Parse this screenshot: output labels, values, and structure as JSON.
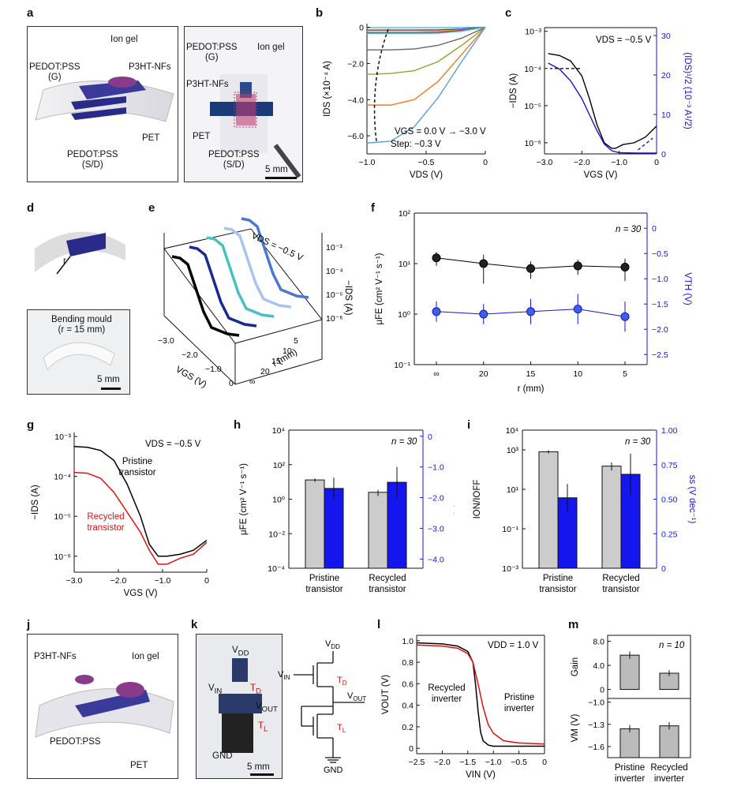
{
  "panels": {
    "a": {
      "letter": "a",
      "labels": {
        "ion_gel": "Ion gel",
        "pedot_g": "PEDOT:PSS\n(G)",
        "p3ht": "P3HT-NFs",
        "pedot_sd": "PEDOT:PSS\n(S/D)",
        "pet": "PET"
      },
      "photo_labels": {
        "pedot_g": "PEDOT:PSS\n(G)",
        "ion_gel": "Ion gel",
        "p3ht": "P3HT-NFs",
        "pet": "PET",
        "pedot_sd": "PEDOT:PSS\n(S/D)",
        "scale": "5 mm"
      }
    },
    "b": {
      "letter": "b"
    },
    "c": {
      "letter": "c"
    },
    "d": {
      "letter": "d",
      "r_label": "r",
      "mould": "Bending mould\n(r = 15 mm)",
      "scale": "5 mm"
    },
    "e": {
      "letter": "e"
    },
    "f": {
      "letter": "f"
    },
    "g": {
      "letter": "g"
    },
    "h": {
      "letter": "h"
    },
    "i": {
      "letter": "i"
    },
    "j": {
      "letter": "j",
      "labels": {
        "p3ht": "P3HT-NFs",
        "ion_gel": "Ion gel",
        "pedot": "PEDOT:PSS",
        "pet": "PET"
      }
    },
    "k": {
      "letter": "k",
      "photo_labels": {
        "vdd": "V",
        "vdd_sub": "DD",
        "vin": "V",
        "vin_sub": "IN",
        "td": "T",
        "td_sub": "D",
        "vout": "V",
        "vout_sub": "OUT",
        "tl": "T",
        "tl_sub": "L",
        "gnd": "GND",
        "scale": "5 mm"
      }
    },
    "l": {
      "letter": "l"
    },
    "m": {
      "letter": "m"
    }
  },
  "chart_data": [
    {
      "id": "b",
      "type": "line",
      "title": "",
      "xlabel": "V_DS (V)",
      "ylabel": "I_DS (×10^-4 A)",
      "xlim": [
        -1.0,
        0
      ],
      "ylim": [
        -7,
        0.2
      ],
      "xticks": [
        "−1.0",
        "−0.5",
        "0"
      ],
      "yticks": [
        "0",
        "−2.0",
        "−4.0",
        "−6.0"
      ],
      "annotation": [
        "V_GS = 0.0 V → −3.0 V",
        "Step: −0.3 V"
      ],
      "series": [
        {
          "color": "#4ab8d8",
          "x": [
            -1.0,
            -0.8,
            -0.6,
            -0.4,
            -0.2,
            0
          ],
          "y": [
            -0.02,
            -0.02,
            -0.02,
            -0.02,
            -0.01,
            0
          ]
        },
        {
          "color": "#3a3ac0",
          "x": [
            -1.0,
            -0.8,
            -0.6,
            -0.4,
            -0.2,
            0
          ],
          "y": [
            -0.15,
            -0.15,
            -0.15,
            -0.14,
            -0.1,
            0
          ]
        },
        {
          "color": "#e0b020",
          "x": [
            -1.0,
            -0.8,
            -0.6,
            -0.4,
            -0.2,
            0
          ],
          "y": [
            -0.2,
            -0.2,
            -0.2,
            -0.2,
            -0.15,
            0
          ]
        },
        {
          "color": "#a02050",
          "x": [
            -1.0,
            -0.8,
            -0.6,
            -0.4,
            -0.2,
            0
          ],
          "y": [
            -0.3,
            -0.3,
            -0.3,
            -0.28,
            -0.18,
            0
          ]
        },
        {
          "color": "#5bc8c8",
          "x": [
            -1.0,
            -0.8,
            -0.6,
            -0.4,
            -0.2,
            0
          ],
          "y": [
            -0.35,
            -0.35,
            -0.35,
            -0.33,
            -0.22,
            0
          ]
        },
        {
          "color": "#666666",
          "x": [
            -1.0,
            -0.8,
            -0.6,
            -0.4,
            -0.2,
            0
          ],
          "y": [
            -1.25,
            -1.25,
            -1.2,
            -1.0,
            -0.6,
            0
          ]
        },
        {
          "color": "#9aa030",
          "x": [
            -1.0,
            -0.8,
            -0.6,
            -0.4,
            -0.2,
            0
          ],
          "y": [
            -2.6,
            -2.55,
            -2.4,
            -1.9,
            -1.0,
            0
          ]
        },
        {
          "color": "#f07a20",
          "x": [
            -1.0,
            -0.8,
            -0.6,
            -0.4,
            -0.2,
            0
          ],
          "y": [
            -4.3,
            -4.3,
            -4.0,
            -3.0,
            -1.5,
            0
          ]
        },
        {
          "color": "#5aa0d8",
          "x": [
            -1.0,
            -0.8,
            -0.6,
            -0.4,
            -0.2,
            0
          ],
          "y": [
            -6.4,
            -6.3,
            -5.5,
            -3.9,
            -1.9,
            0
          ]
        }
      ]
    },
    {
      "id": "c",
      "type": "line",
      "title": "V_DS = −0.5 V",
      "xlabel": "V_GS (V)",
      "ylabel": "−I_DS (A)",
      "ylabel_right": "(I_DS)^1/2 (10^-3 A^1/2)",
      "xlim": [
        -3.0,
        0
      ],
      "ylim_log": [
        -6.3,
        -2.9
      ],
      "ylim_right": [
        0,
        32
      ],
      "xticks": [
        "−3.0",
        "−2.0",
        "−1.0",
        "0"
      ],
      "yticks": [
        "10^-3",
        "10^-4",
        "10^-5",
        "10^-6"
      ],
      "yticks_right": [
        "0",
        "10",
        "20",
        "30"
      ],
      "series": [
        {
          "name": "log",
          "color": "#000000",
          "x": [
            -2.9,
            -2.6,
            -2.3,
            -2.0,
            -1.8,
            -1.6,
            -1.4,
            -1.2,
            -1.1,
            -0.9,
            -0.6,
            -0.3,
            0
          ],
          "y": [
            -3.6,
            -3.65,
            -3.8,
            -4.2,
            -4.8,
            -5.5,
            -6.0,
            -6.15,
            -6.15,
            -6.05,
            -6.0,
            -5.85,
            -5.55
          ]
        },
        {
          "name": "sqrt",
          "color": "#1515d0",
          "x": [
            -2.9,
            -2.6,
            -2.3,
            -2.0,
            -1.8,
            -1.6,
            -1.4,
            -1.2,
            -1.0,
            -0.5,
            0
          ],
          "y": [
            23,
            21.5,
            18.5,
            14,
            10,
            6,
            2.5,
            0.8,
            0.3,
            0.2,
            0.2
          ]
        }
      ]
    },
    {
      "id": "e",
      "type": "line",
      "title": "V_DS = −0.5 V",
      "xlabel": "V_GS (V)",
      "ylabel": "r (mm)",
      "zlabel": "−I_DS (A)",
      "xticks": [
        "−3.0",
        "−2.0",
        "−1.0",
        "0"
      ],
      "yticks": [
        "∞",
        "20",
        "15",
        "10",
        "5"
      ],
      "zticks": [
        "10^-3",
        "10^-4",
        "10^-5",
        "10^-6"
      ],
      "series": [
        {
          "name": "∞",
          "color": "#000000"
        },
        {
          "name": "20",
          "color": "#1a2a90"
        },
        {
          "name": "15",
          "color": "#4ac0c0"
        },
        {
          "name": "10",
          "color": "#a8c4f0"
        },
        {
          "name": "5",
          "color": "#4a78d0"
        }
      ]
    },
    {
      "id": "f",
      "type": "scatter",
      "title": "",
      "annotation": "n = 30",
      "xlabel": "r (mm)",
      "ylabel": "μ_FE (cm^2 V^-1 s^-1)",
      "ylabel_right": "V_TH (V)",
      "categories": [
        "∞",
        "20",
        "15",
        "10",
        "5"
      ],
      "ylim_log": [
        -1,
        2
      ],
      "ylim_right": [
        -2.7,
        0.3
      ],
      "yticks": [
        "10^-1",
        "10^0",
        "10^1",
        "10^2"
      ],
      "yticks_right": [
        "0",
        "−0.5",
        "−1.0",
        "−1.5",
        "−2.0",
        "−2.5"
      ],
      "series": [
        {
          "name": "μ_FE",
          "color": "#000000",
          "values": [
            13,
            10,
            8,
            9,
            8.5
          ],
          "err_low": [
            4,
            6,
            3,
            3,
            4
          ],
          "err_high": [
            4,
            5,
            3,
            3,
            4
          ]
        },
        {
          "name": "V_TH",
          "color": "#1515d0",
          "values": [
            -1.65,
            -1.7,
            -1.65,
            -1.6,
            -1.75
          ],
          "err": [
            0.2,
            0.2,
            0.25,
            0.3,
            0.3
          ]
        }
      ]
    },
    {
      "id": "g",
      "type": "line",
      "title": "V_DS = −0.5 V",
      "xlabel": "V_GS (V)",
      "ylabel": "−I_DS (A)",
      "xlim": [
        -3.0,
        0
      ],
      "ylim_log": [
        -6.4,
        -2.9
      ],
      "xticks": [
        "−3.0",
        "−2.0",
        "−1.0",
        "0"
      ],
      "yticks": [
        "10^-3",
        "10^-4",
        "10^-5",
        "10^-6"
      ],
      "annotations": {
        "pristine": "Pristine\ntransistor",
        "recycled": "Recycled\ntransistor"
      },
      "series": [
        {
          "name": "Pristine transistor",
          "color": "#000000",
          "x": [
            -3.0,
            -2.7,
            -2.4,
            -2.1,
            -1.8,
            -1.5,
            -1.3,
            -1.1,
            -0.9,
            -0.6,
            -0.3,
            0
          ],
          "y": [
            -3.25,
            -3.27,
            -3.35,
            -3.6,
            -4.2,
            -5.0,
            -5.7,
            -6.0,
            -6.0,
            -5.95,
            -5.85,
            -5.6
          ]
        },
        {
          "name": "Recycled transistor",
          "color": "#e01010",
          "x": [
            -3.0,
            -2.7,
            -2.4,
            -2.1,
            -1.8,
            -1.5,
            -1.3,
            -1.1,
            -0.9,
            -0.6,
            -0.3,
            0
          ],
          "y": [
            -3.9,
            -3.92,
            -4.05,
            -4.4,
            -4.9,
            -5.4,
            -5.85,
            -6.2,
            -6.2,
            -6.05,
            -5.95,
            -5.65
          ]
        }
      ]
    },
    {
      "id": "h",
      "type": "bar",
      "title": "",
      "annotation": "n = 30",
      "categories": [
        "Pristine\ntransistor",
        "Recycled\ntransistor"
      ],
      "ylabel": "μ_FE (cm^2 V^-1 s^-1)",
      "ylabel_right": "V_TH (V)",
      "ylim_log": [
        -4,
        4
      ],
      "ylim_right": [
        -4.3,
        0.2
      ],
      "yticks": [
        "10^-4",
        "10^-2",
        "10^0",
        "10^2",
        "10^4"
      ],
      "yticks_right": [
        "0",
        "−1.0",
        "−2.0",
        "−3.0",
        "−4.0"
      ],
      "series": [
        {
          "name": "μ_FE",
          "color": "#cccccc",
          "values": [
            13,
            2.5
          ],
          "err_low": [
            3,
            1
          ],
          "err_high": [
            3,
            1
          ]
        },
        {
          "name": "V_TH",
          "color": "#1515ee",
          "values": [
            -1.7,
            -1.5
          ],
          "err": [
            0.35,
            0.5
          ]
        }
      ]
    },
    {
      "id": "i",
      "type": "bar",
      "title": "",
      "annotation": "n = 30",
      "categories": [
        "Pristine\ntransistor",
        "Recycled\ntransistor"
      ],
      "ylabel": "I_ON/I_OFF",
      "ylabel_right": "ss (V dec^-1)",
      "ylim_log": [
        -3,
        4
      ],
      "ylim_right": [
        0,
        1.0
      ],
      "yticks": [
        "10^-3",
        "10^-1",
        "10^1",
        "10^3",
        "10^4"
      ],
      "yticks_right": [
        "0",
        "0.25",
        "0.50",
        "0.75",
        "1.00"
      ],
      "series": [
        {
          "name": "I_ON/I_OFF",
          "color": "#cccccc",
          "values": [
            800,
            150
          ],
          "err_low": [
            150,
            60
          ],
          "err_high": [
            150,
            80
          ]
        },
        {
          "name": "ss",
          "color": "#1515ee",
          "values": [
            0.51,
            0.68
          ],
          "err": [
            0.1,
            0.15
          ]
        }
      ]
    },
    {
      "id": "l",
      "type": "line",
      "title": "V_DD = 1.0 V",
      "xlabel": "V_IN (V)",
      "ylabel": "V_OUT (V)",
      "xlim": [
        -2.5,
        0
      ],
      "ylim": [
        -0.05,
        1.05
      ],
      "xticks": [
        "−2.5",
        "−2.0",
        "−1.5",
        "−1.0",
        "−0.5",
        "0"
      ],
      "yticks": [
        "0",
        "0.2",
        "0.4",
        "0.6",
        "0.8",
        "1.0"
      ],
      "annotations": {
        "recycled": "Recycled\ninverter",
        "pristine": "Pristine\ninverter"
      },
      "series": [
        {
          "name": "Pristine inverter",
          "color": "#000000",
          "x": [
            -2.5,
            -2.0,
            -1.7,
            -1.5,
            -1.4,
            -1.35,
            -1.3,
            -1.25,
            -1.2,
            -1.1,
            -1.0,
            -0.5,
            0
          ],
          "y": [
            0.98,
            0.97,
            0.95,
            0.9,
            0.8,
            0.6,
            0.35,
            0.15,
            0.07,
            0.03,
            0.02,
            0.02,
            0.02
          ]
        },
        {
          "name": "Recycled inverter",
          "color": "#e01010",
          "x": [
            -2.5,
            -2.0,
            -1.7,
            -1.5,
            -1.4,
            -1.3,
            -1.2,
            -1.1,
            -1.0,
            -0.8,
            -0.5,
            0
          ],
          "y": [
            0.96,
            0.95,
            0.93,
            0.88,
            0.8,
            0.6,
            0.38,
            0.22,
            0.14,
            0.07,
            0.05,
            0.04
          ]
        }
      ]
    },
    {
      "id": "m",
      "type": "bar",
      "title": "",
      "annotation": "n = 10",
      "categories": [
        "Pristine\ninverter",
        "Recycled\ninverter"
      ],
      "subplots": [
        {
          "ylabel": "Gain",
          "ylim": [
            -1.5,
            9
          ],
          "yticks": [
            "0",
            "4.0",
            "8.0"
          ],
          "values": [
            5.7,
            2.7
          ],
          "err": [
            0.6,
            0.5
          ]
        },
        {
          "ylabel": "V_M (V)",
          "ylim": [
            -1.75,
            -0.95
          ],
          "yticks": [
            "−1.0",
            "−1.3",
            "−1.6"
          ],
          "values": [
            -1.36,
            -1.32
          ],
          "err": [
            0.05,
            0.05
          ]
        }
      ]
    }
  ],
  "circuit": {
    "vdd": "V",
    "vdd_sub": "DD",
    "vin": "V",
    "vin_sub": "IN",
    "td": "T",
    "td_sub": "D",
    "vout": "V",
    "vout_sub": "OUT",
    "tl": "T",
    "tl_sub": "L",
    "gnd": "GND"
  }
}
